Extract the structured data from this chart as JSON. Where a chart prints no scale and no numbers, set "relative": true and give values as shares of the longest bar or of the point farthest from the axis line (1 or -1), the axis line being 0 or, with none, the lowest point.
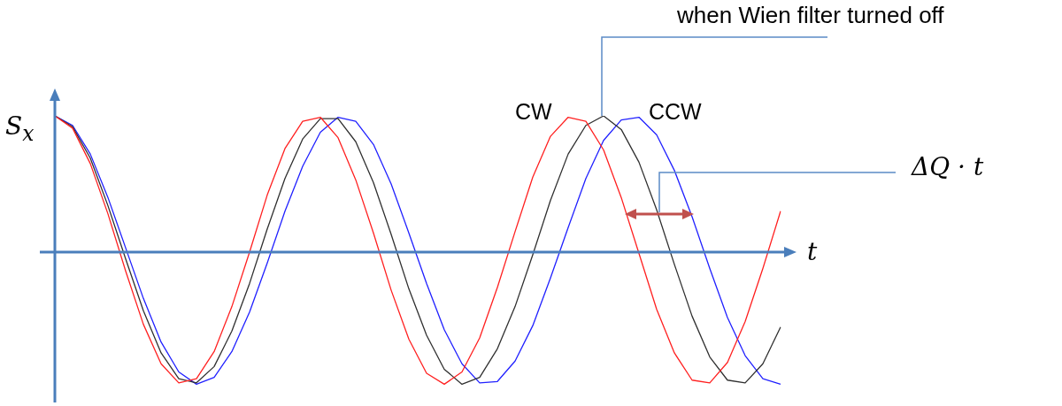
{
  "chart_data": {
    "type": "line",
    "relative": true,
    "xlabel": "t",
    "ylabel": "S$_{x}$",
    "categories": [
      null,
      null,
      null,
      null,
      null,
      null,
      null,
      null,
      null,
      null,
      null,
      null,
      null,
      null,
      null,
      null,
      null,
      null,
      null,
      null,
      null,
      null,
      null,
      null,
      null,
      null,
      null,
      null,
      null,
      null,
      null,
      null,
      null,
      null,
      null,
      null,
      null,
      null,
      null,
      null,
      null,
      null
    ],
    "series": [
      {
        "name": "CW",
        "color": "#ff2020",
        "values": [
          1,
          0.91,
          0.65,
          0.28,
          -0.14,
          -0.53,
          -0.82,
          -0.96,
          -0.93,
          -0.73,
          -0.4,
          0,
          0.42,
          0.76,
          0.96,
          0.99,
          0.84,
          0.53,
          0.14,
          -0.28,
          -0.64,
          -0.89,
          -0.97,
          -0.88,
          -0.63,
          -0.26,
          0.15,
          0.55,
          0.85,
          0.99,
          0.96,
          0.75,
          0.4,
          -0.01,
          -0.42,
          -0.74,
          -0.94,
          -0.96,
          -0.81,
          -0.51,
          -0.12,
          0.3
        ]
      },
      {
        "color": "#303030",
        "values": [
          1,
          0.92,
          0.69,
          0.34,
          -0.05,
          -0.43,
          -0.74,
          -0.93,
          -0.96,
          -0.84,
          -0.58,
          -0.23,
          0.17,
          0.54,
          0.83,
          0.98,
          0.98,
          0.81,
          0.51,
          0.13,
          -0.27,
          -0.61,
          -0.86,
          -0.97,
          -0.92,
          -0.71,
          -0.4,
          -0.02,
          0.38,
          0.72,
          0.93,
          1,
          0.9,
          0.66,
          0.31,
          -0.09,
          -0.47,
          -0.77,
          -0.94,
          -0.96,
          -0.82,
          -0.55
        ]
      },
      {
        "name": "CCW",
        "color": "#2020ff",
        "values": [
          1,
          0.93,
          0.72,
          0.4,
          0.03,
          -0.34,
          -0.66,
          -0.88,
          -0.97,
          -0.92,
          -0.73,
          -0.44,
          -0.08,
          0.3,
          0.63,
          0.88,
          0.99,
          0.96,
          0.79,
          0.5,
          0.14,
          -0.23,
          -0.57,
          -0.82,
          -0.96,
          -0.95,
          -0.8,
          -0.54,
          -0.19,
          0.18,
          0.54,
          0.82,
          0.97,
          0.99,
          0.86,
          0.6,
          0.26,
          -0.12,
          -0.48,
          -0.76,
          -0.93,
          -0.97
        ]
      }
    ],
    "ref_lines": [
      {
        "axis": "y",
        "value": 0,
        "color": "#4a7ebb"
      }
    ],
    "annotations": [
      "when Wien filter turned off",
      "ΔQ · t"
    ]
  }
}
